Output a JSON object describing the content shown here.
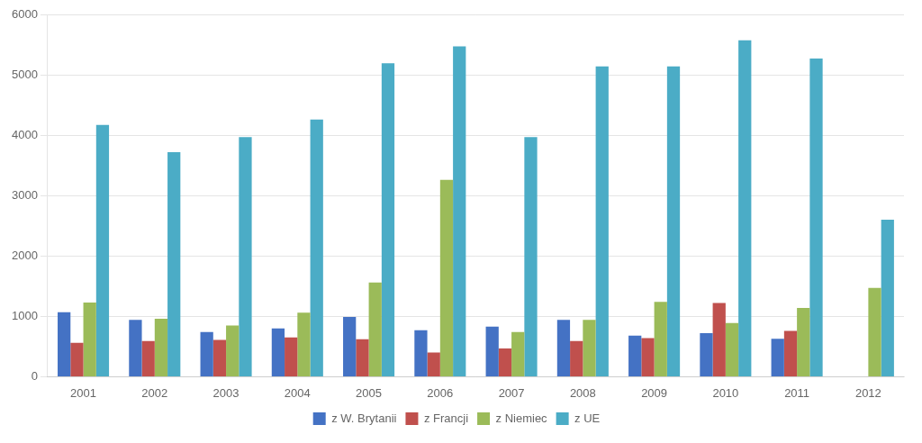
{
  "chart_data": {
    "type": "bar",
    "categories": [
      "2001",
      "2002",
      "2003",
      "2004",
      "2005",
      "2006",
      "2007",
      "2008",
      "2009",
      "2010",
      "2011",
      "2012"
    ],
    "series": [
      {
        "name": "z W. Brytanii",
        "color": "#4472C4",
        "values": [
          1070,
          940,
          740,
          800,
          990,
          770,
          830,
          940,
          680,
          720,
          630,
          0
        ]
      },
      {
        "name": "z Francji",
        "color": "#C0504D",
        "values": [
          560,
          590,
          610,
          650,
          620,
          400,
          470,
          590,
          640,
          1220,
          760,
          0
        ]
      },
      {
        "name": "z Niemiec",
        "color": "#9BBB59",
        "values": [
          1230,
          960,
          850,
          1060,
          1560,
          3260,
          740,
          940,
          1240,
          890,
          1140,
          1470
        ]
      },
      {
        "name": "z UE",
        "color": "#4BACC6",
        "values": [
          4170,
          3720,
          3970,
          4260,
          5190,
          5470,
          3970,
          5140,
          5140,
          5570,
          5270,
          2600
        ]
      }
    ],
    "ylim": [
      0,
      6000
    ],
    "yticks": [
      0,
      1000,
      2000,
      3000,
      4000,
      5000,
      6000
    ],
    "grid": true,
    "legend": "bottom"
  }
}
